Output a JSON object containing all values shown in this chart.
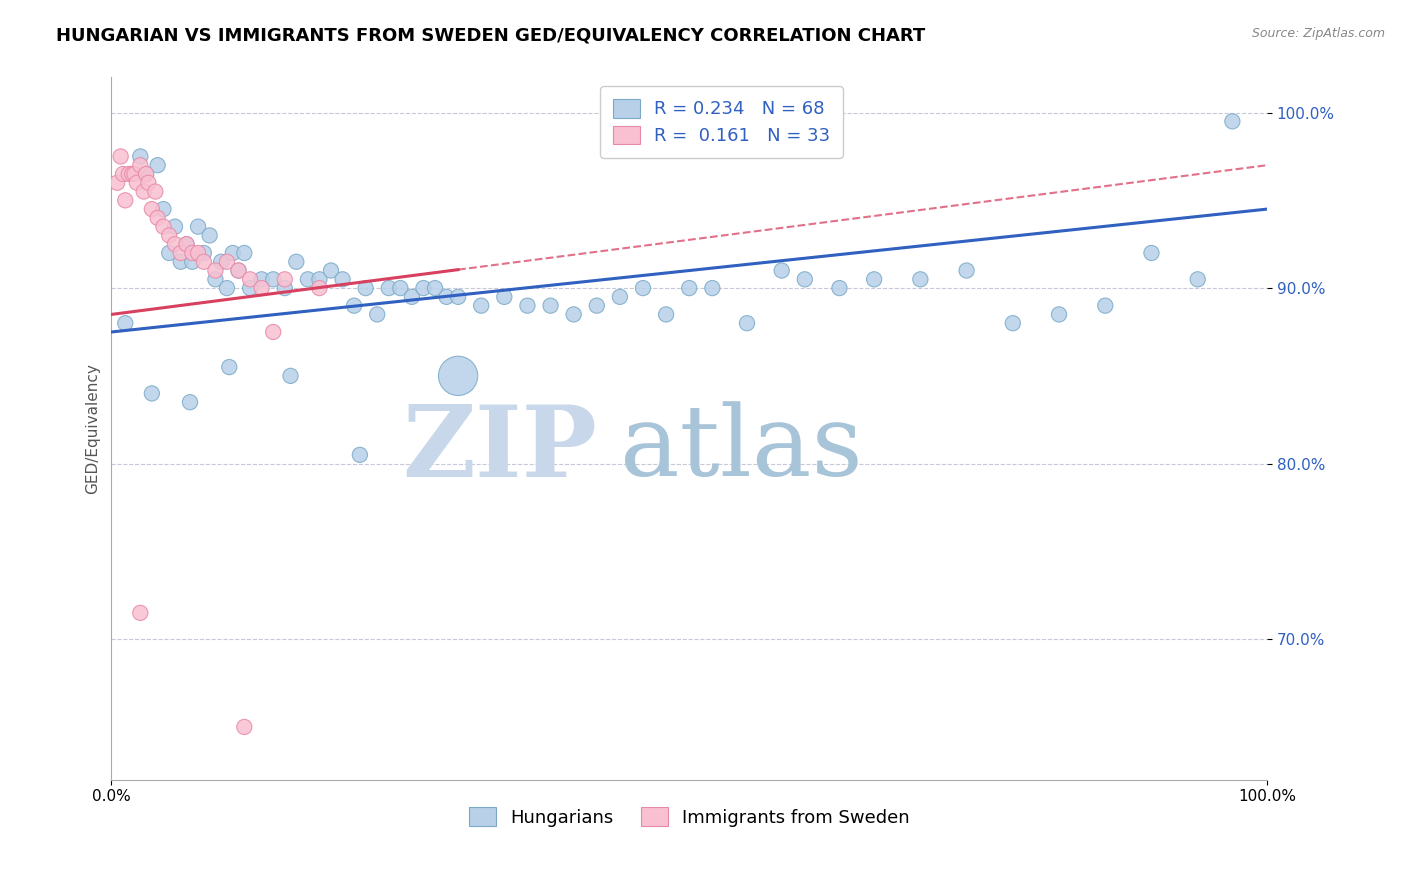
{
  "title": "HUNGARIAN VS IMMIGRANTS FROM SWEDEN GED/EQUIVALENCY CORRELATION CHART",
  "source": "Source: ZipAtlas.com",
  "ylabel": "GED/Equivalency",
  "R_blue": 0.234,
  "N_blue": 68,
  "R_pink": 0.161,
  "N_pink": 33,
  "blue_color": "#b8d0e8",
  "blue_edge": "#7aaac8",
  "pink_color": "#f8c0d0",
  "pink_edge": "#e888a8",
  "trend_blue": "#3060c0",
  "trend_pink": "#d84060",
  "watermark_zip_color": "#c8d8e8",
  "watermark_atlas_color": "#a8c0d8",
  "legend_text_color": "#3060c0",
  "ytick_color": "#3060c0",
  "grid_color": "#c8c8d8",
  "blue_points_x": [
    1.2,
    2.5,
    3.0,
    4.0,
    4.5,
    5.0,
    5.5,
    6.0,
    6.5,
    7.0,
    7.5,
    8.0,
    8.5,
    9.0,
    9.5,
    10.0,
    10.5,
    11.0,
    11.5,
    12.0,
    13.0,
    14.0,
    15.0,
    16.0,
    17.0,
    18.0,
    19.0,
    20.0,
    21.0,
    22.0,
    23.0,
    24.0,
    25.0,
    26.0,
    27.0,
    28.0,
    29.0,
    30.0,
    32.0,
    34.0,
    36.0,
    38.0,
    40.0,
    42.0,
    44.0,
    46.0,
    48.0,
    50.0,
    52.0,
    55.0,
    58.0,
    60.0,
    63.0,
    66.0,
    70.0,
    74.0,
    78.0,
    82.0,
    86.0,
    90.0,
    94.0,
    97.0,
    3.5,
    6.8,
    10.2,
    15.5,
    21.5,
    30.0
  ],
  "blue_points_y": [
    88.0,
    97.5,
    96.5,
    97.0,
    94.5,
    92.0,
    93.5,
    91.5,
    92.5,
    91.5,
    93.5,
    92.0,
    93.0,
    90.5,
    91.5,
    90.0,
    92.0,
    91.0,
    92.0,
    90.0,
    90.5,
    90.5,
    90.0,
    91.5,
    90.5,
    90.5,
    91.0,
    90.5,
    89.0,
    90.0,
    88.5,
    90.0,
    90.0,
    89.5,
    90.0,
    90.0,
    89.5,
    89.5,
    89.0,
    89.5,
    89.0,
    89.0,
    88.5,
    89.0,
    89.5,
    90.0,
    88.5,
    90.0,
    90.0,
    88.0,
    91.0,
    90.5,
    90.0,
    90.5,
    90.5,
    91.0,
    88.0,
    88.5,
    89.0,
    92.0,
    90.5,
    99.5,
    84.0,
    83.5,
    85.5,
    85.0,
    80.5,
    85.0
  ],
  "blue_sizes_raw": [
    1,
    1,
    1,
    1,
    1,
    1,
    1,
    1,
    1,
    1,
    1,
    1,
    1,
    1,
    1,
    1,
    1,
    1,
    1,
    1,
    1,
    1,
    1,
    1,
    1,
    1,
    1,
    1,
    1,
    1,
    1,
    1,
    1,
    1,
    1,
    1,
    1,
    1,
    1,
    1,
    1,
    1,
    1,
    1,
    1,
    1,
    1,
    1,
    1,
    1,
    1,
    1,
    1,
    1,
    1,
    1,
    1,
    1,
    1,
    1,
    1,
    1,
    1,
    1,
    1,
    1,
    1,
    8
  ],
  "pink_points_x": [
    0.5,
    0.8,
    1.0,
    1.2,
    1.5,
    1.8,
    2.0,
    2.2,
    2.5,
    2.8,
    3.0,
    3.2,
    3.5,
    3.8,
    4.0,
    4.5,
    5.0,
    5.5,
    6.0,
    6.5,
    7.0,
    7.5,
    8.0,
    9.0,
    10.0,
    11.0,
    12.0,
    13.0,
    15.0,
    18.0,
    2.5,
    11.5,
    14.0
  ],
  "pink_points_y": [
    96.0,
    97.5,
    96.5,
    95.0,
    96.5,
    96.5,
    96.5,
    96.0,
    97.0,
    95.5,
    96.5,
    96.0,
    94.5,
    95.5,
    94.0,
    93.5,
    93.0,
    92.5,
    92.0,
    92.5,
    92.0,
    92.0,
    91.5,
    91.0,
    91.5,
    91.0,
    90.5,
    90.0,
    90.5,
    90.0,
    71.5,
    65.0,
    87.5
  ],
  "pink_sizes_raw": [
    1,
    1,
    1,
    1,
    1,
    1,
    1,
    1,
    1,
    1,
    1,
    1,
    1,
    1,
    1,
    1,
    1,
    1,
    1,
    1,
    1,
    1,
    1,
    1,
    1,
    1,
    1,
    1,
    1,
    1,
    1,
    1,
    1
  ],
  "xlim": [
    0,
    100
  ],
  "ylim": [
    62,
    102
  ],
  "yticks": [
    70.0,
    80.0,
    90.0,
    100.0
  ],
  "ytick_labels": [
    "70.0%",
    "80.0%",
    "90.0%",
    "100.0%"
  ],
  "xtick_positions": [
    0,
    100
  ],
  "xtick_labels": [
    "0.0%",
    "100.0%"
  ],
  "blue_trend_x0": 0,
  "blue_trend_x1": 100,
  "blue_trend_y0": 87.5,
  "blue_trend_y1": 94.5,
  "pink_trend_x0": 0,
  "pink_trend_x1": 100,
  "pink_trend_y0": 88.5,
  "pink_trend_y1": 97.0,
  "pink_solid_end_x": 30,
  "title_fontsize": 13,
  "axis_label_fontsize": 11,
  "tick_fontsize": 11,
  "legend_fontsize": 13,
  "base_marker_size": 120,
  "large_marker_size": 800
}
